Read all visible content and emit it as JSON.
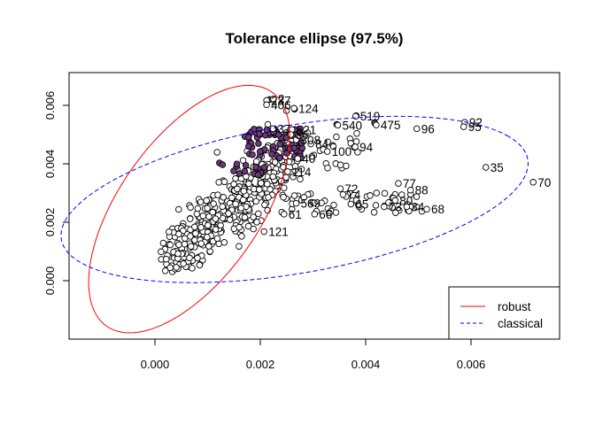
{
  "chart_data": {
    "type": "scatter",
    "title": "Tolerance ellipse (97.5%)",
    "xlabel": "",
    "ylabel": "",
    "xlim": [
      -0.0015,
      0.0074
    ],
    "ylim": [
      -0.0021,
      0.0071
    ],
    "x_ticks": [
      "0.000",
      "0.002",
      "0.004",
      "0.006"
    ],
    "y_ticks": [
      "0.000",
      "0.002",
      "0.004",
      "0.006"
    ],
    "grid": false,
    "legend_position": "bottom-right",
    "legend": [
      {
        "label": "robust",
        "color": "#ff0000",
        "dash": "solid"
      },
      {
        "label": "classical",
        "color": "#0000ff",
        "dash": "dashed"
      }
    ],
    "colors": {
      "outlier_fill": "#6b3a78",
      "axis": "#000000",
      "robust": "#ff0000",
      "classical": "#0000ff"
    },
    "ellipses": [
      {
        "name": "robust",
        "center": [
          0.00065,
          0.00245
        ],
        "angle_deg": 74,
        "semi_axes": [
          0.0044,
          0.00085
        ]
      },
      {
        "name": "classical",
        "center": [
          0.00265,
          0.00278
        ],
        "angle_deg": 28,
        "semi_axes": [
          0.0046,
          0.0021
        ]
      }
    ],
    "labeled_points": [
      {
        "label": "237",
        "x": 0.00212,
        "y": 0.00617
      },
      {
        "label": "2",
        "x": 0.00225,
        "y": 0.00622
      },
      {
        "label": "406",
        "x": 0.00212,
        "y": 0.00602
      },
      {
        "label": "124",
        "x": 0.00264,
        "y": 0.0059
      },
      {
        "label": "519",
        "x": 0.00381,
        "y": 0.00563
      },
      {
        "label": "475",
        "x": 0.0042,
        "y": 0.00533
      },
      {
        "label": "540",
        "x": 0.00347,
        "y": 0.00532
      },
      {
        "label": "96",
        "x": 0.00497,
        "y": 0.0052
      },
      {
        "label": "92",
        "x": 0.00588,
        "y": 0.00542
      },
      {
        "label": "95",
        "x": 0.00586,
        "y": 0.00527
      },
      {
        "label": "37",
        "x": 0.00224,
        "y": 0.0052
      },
      {
        "label": "521",
        "x": 0.0026,
        "y": 0.00517
      },
      {
        "label": "86",
        "x": 0.00258,
        "y": 0.005
      },
      {
        "label": "308",
        "x": 0.00268,
        "y": 0.00482
      },
      {
        "label": "84",
        "x": 0.00296,
        "y": 0.00468
      },
      {
        "label": "94",
        "x": 0.0038,
        "y": 0.00458
      },
      {
        "label": "100",
        "x": 0.00327,
        "y": 0.00442
      },
      {
        "label": "40",
        "x": 0.00271,
        "y": 0.00418
      },
      {
        "label": "114",
        "x": 0.00252,
        "y": 0.00373
      },
      {
        "label": "35",
        "x": 0.00628,
        "y": 0.00388
      },
      {
        "label": "70",
        "x": 0.00718,
        "y": 0.00337
      },
      {
        "label": "77",
        "x": 0.00462,
        "y": 0.00333
      },
      {
        "label": "88",
        "x": 0.00485,
        "y": 0.0031
      },
      {
        "label": "72",
        "x": 0.00352,
        "y": 0.00315
      },
      {
        "label": "74",
        "x": 0.00357,
        "y": 0.00295
      },
      {
        "label": "569",
        "x": 0.00268,
        "y": 0.00265
      },
      {
        "label": "65",
        "x": 0.00372,
        "y": 0.00262
      },
      {
        "label": "80",
        "x": 0.00456,
        "y": 0.00275
      },
      {
        "label": "73",
        "x": 0.00435,
        "y": 0.00253
      },
      {
        "label": "34",
        "x": 0.00478,
        "y": 0.00253
      },
      {
        "label": "68",
        "x": 0.00516,
        "y": 0.00245
      },
      {
        "label": "66",
        "x": 0.00303,
        "y": 0.00228
      },
      {
        "label": "61",
        "x": 0.00245,
        "y": 0.00228
      },
      {
        "label": "121",
        "x": 0.00207,
        "y": 0.00168
      }
    ]
  }
}
